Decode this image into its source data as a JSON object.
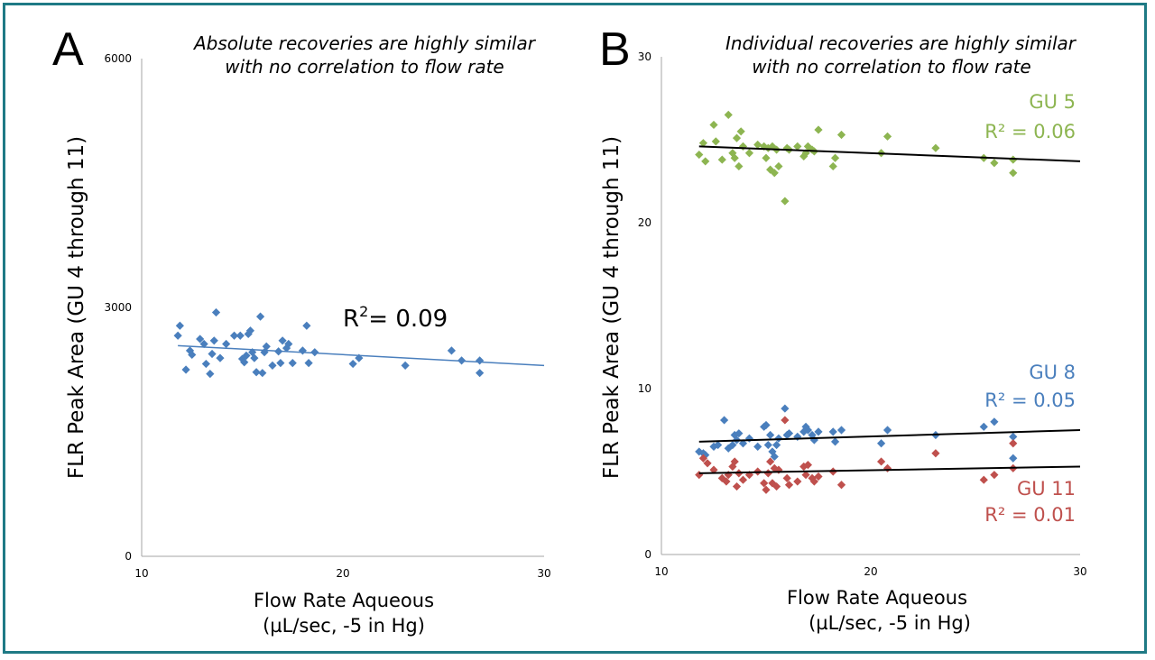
{
  "chart_data": [
    {
      "panel": "A",
      "type": "scatter",
      "title": "Absolute recoveries are highly similar with no correlation to flow rate",
      "title_lines": [
        "Absolute recoveries are highly similar",
        "with no correlation to flow rate"
      ],
      "xlabel_lines": [
        "Flow Rate Aqueous",
        "(µL/sec, -5 in Hg)"
      ],
      "ylabel": "FLR Peak Area (GU 4 through 11)",
      "xlim": [
        10,
        30
      ],
      "ylim": [
        0,
        6000
      ],
      "xticks": [
        "10",
        "20",
        "30"
      ],
      "yticks": [
        "0",
        "3000",
        "6000"
      ],
      "series": [
        {
          "name": "GU 4 through 11",
          "color": "#4a7fbd",
          "r2_label": "R",
          "r2_value": "= 0.09",
          "trend": [
            [
              11.8,
              2540
            ],
            [
              30,
              2300
            ]
          ],
          "points": [
            [
              11.8,
              2660
            ],
            [
              11.9,
              2780
            ],
            [
              12.2,
              2250
            ],
            [
              12.4,
              2480
            ],
            [
              12.5,
              2430
            ],
            [
              12.9,
              2620
            ],
            [
              13.1,
              2560
            ],
            [
              13.2,
              2320
            ],
            [
              13.4,
              2200
            ],
            [
              13.5,
              2440
            ],
            [
              13.6,
              2600
            ],
            [
              13.7,
              2940
            ],
            [
              13.9,
              2390
            ],
            [
              14.2,
              2560
            ],
            [
              14.6,
              2660
            ],
            [
              14.9,
              2660
            ],
            [
              15.0,
              2380
            ],
            [
              15.1,
              2340
            ],
            [
              15.2,
              2420
            ],
            [
              15.3,
              2680
            ],
            [
              15.4,
              2720
            ],
            [
              15.5,
              2460
            ],
            [
              15.6,
              2390
            ],
            [
              15.7,
              2220
            ],
            [
              15.9,
              2890
            ],
            [
              16.0,
              2210
            ],
            [
              16.1,
              2460
            ],
            [
              16.2,
              2530
            ],
            [
              16.5,
              2300
            ],
            [
              16.8,
              2470
            ],
            [
              16.9,
              2330
            ],
            [
              17.0,
              2600
            ],
            [
              17.2,
              2510
            ],
            [
              17.3,
              2560
            ],
            [
              17.5,
              2330
            ],
            [
              18.0,
              2480
            ],
            [
              18.2,
              2780
            ],
            [
              18.3,
              2330
            ],
            [
              18.6,
              2460
            ],
            [
              20.5,
              2320
            ],
            [
              20.8,
              2390
            ],
            [
              23.1,
              2300
            ],
            [
              25.4,
              2480
            ],
            [
              25.9,
              2360
            ],
            [
              26.8,
              2360
            ],
            [
              26.8,
              2210
            ]
          ]
        }
      ]
    },
    {
      "panel": "B",
      "type": "scatter",
      "title": "Individual recoveries are highly similar with no correlation to flow rate",
      "title_lines": [
        "Individual recoveries are highly similar",
        "with no correlation to flow rate"
      ],
      "xlabel_lines": [
        "Flow Rate Aqueous",
        "(µL/sec, -5 in Hg)"
      ],
      "ylabel": "FLR Peak Area (GU 4 through 11)",
      "xlim": [
        10,
        30
      ],
      "ylim": [
        0,
        30
      ],
      "xticks": [
        "10",
        "20",
        "30"
      ],
      "yticks": [
        "0",
        "10",
        "20",
        "30"
      ],
      "series": [
        {
          "name": "GU 5",
          "color": "#8db551",
          "r2_label": "R² = 0.06",
          "trend": [
            [
              11.8,
              24.6
            ],
            [
              30,
              23.7
            ]
          ],
          "points": [
            [
              11.8,
              24.1
            ],
            [
              12.0,
              24.8
            ],
            [
              12.1,
              23.7
            ],
            [
              12.5,
              25.9
            ],
            [
              12.6,
              24.9
            ],
            [
              12.9,
              23.8
            ],
            [
              13.2,
              26.5
            ],
            [
              13.4,
              24.2
            ],
            [
              13.5,
              23.9
            ],
            [
              13.6,
              25.1
            ],
            [
              13.7,
              23.4
            ],
            [
              13.8,
              25.5
            ],
            [
              13.9,
              24.6
            ],
            [
              14.2,
              24.2
            ],
            [
              14.6,
              24.7
            ],
            [
              14.9,
              24.6
            ],
            [
              15.0,
              23.9
            ],
            [
              15.1,
              24.5
            ],
            [
              15.2,
              23.2
            ],
            [
              15.3,
              24.6
            ],
            [
              15.4,
              23.0
            ],
            [
              15.5,
              24.4
            ],
            [
              15.6,
              23.4
            ],
            [
              15.9,
              21.3
            ],
            [
              16.0,
              24.5
            ],
            [
              16.1,
              24.4
            ],
            [
              16.5,
              24.6
            ],
            [
              16.8,
              24.0
            ],
            [
              16.9,
              24.2
            ],
            [
              17.0,
              24.6
            ],
            [
              17.2,
              24.4
            ],
            [
              17.3,
              24.3
            ],
            [
              17.5,
              25.6
            ],
            [
              18.2,
              23.4
            ],
            [
              18.3,
              23.9
            ],
            [
              18.6,
              25.3
            ],
            [
              20.5,
              24.2
            ],
            [
              20.8,
              25.2
            ],
            [
              23.1,
              24.5
            ],
            [
              25.4,
              23.9
            ],
            [
              25.9,
              23.6
            ],
            [
              26.8,
              23.0
            ],
            [
              26.8,
              23.8
            ]
          ]
        },
        {
          "name": "GU 8",
          "color": "#4a7fbd",
          "r2_label": "R² = 0.05",
          "trend": [
            [
              11.8,
              6.8
            ],
            [
              30,
              7.5
            ]
          ],
          "points": [
            [
              11.8,
              6.2
            ],
            [
              12.0,
              6.1
            ],
            [
              12.1,
              6.0
            ],
            [
              12.5,
              6.5
            ],
            [
              12.7,
              6.6
            ],
            [
              13.0,
              8.1
            ],
            [
              13.2,
              6.4
            ],
            [
              13.4,
              6.6
            ],
            [
              13.5,
              7.2
            ],
            [
              13.6,
              6.9
            ],
            [
              13.7,
              7.3
            ],
            [
              13.9,
              6.7
            ],
            [
              14.2,
              7.0
            ],
            [
              14.6,
              6.5
            ],
            [
              14.9,
              7.7
            ],
            [
              15.0,
              7.8
            ],
            [
              15.1,
              6.6
            ],
            [
              15.2,
              7.2
            ],
            [
              15.3,
              6.2
            ],
            [
              15.4,
              5.9
            ],
            [
              15.5,
              6.6
            ],
            [
              15.6,
              7.0
            ],
            [
              15.9,
              8.8
            ],
            [
              16.0,
              7.2
            ],
            [
              16.1,
              7.3
            ],
            [
              16.5,
              7.1
            ],
            [
              16.8,
              7.4
            ],
            [
              16.9,
              7.7
            ],
            [
              17.0,
              7.5
            ],
            [
              17.2,
              7.2
            ],
            [
              17.3,
              6.9
            ],
            [
              17.5,
              7.4
            ],
            [
              18.2,
              7.4
            ],
            [
              18.3,
              6.8
            ],
            [
              18.6,
              7.5
            ],
            [
              20.5,
              6.7
            ],
            [
              20.8,
              7.5
            ],
            [
              23.1,
              7.2
            ],
            [
              25.4,
              7.7
            ],
            [
              25.9,
              8.0
            ],
            [
              26.8,
              7.1
            ],
            [
              26.8,
              5.8
            ]
          ]
        },
        {
          "name": "GU 11",
          "color": "#bf504d",
          "r2_label": "R² = 0.01",
          "trend": [
            [
              11.8,
              4.9
            ],
            [
              30,
              5.3
            ]
          ],
          "points": [
            [
              11.8,
              4.8
            ],
            [
              12.0,
              5.8
            ],
            [
              12.2,
              5.5
            ],
            [
              12.5,
              5.1
            ],
            [
              12.9,
              4.6
            ],
            [
              13.1,
              4.4
            ],
            [
              13.2,
              4.8
            ],
            [
              13.4,
              5.3
            ],
            [
              13.5,
              5.6
            ],
            [
              13.6,
              4.1
            ],
            [
              13.7,
              4.9
            ],
            [
              13.9,
              4.5
            ],
            [
              14.2,
              4.8
            ],
            [
              14.6,
              5.0
            ],
            [
              14.9,
              4.3
            ],
            [
              15.0,
              3.9
            ],
            [
              15.1,
              4.9
            ],
            [
              15.2,
              5.6
            ],
            [
              15.3,
              4.3
            ],
            [
              15.4,
              5.2
            ],
            [
              15.5,
              4.1
            ],
            [
              15.6,
              5.1
            ],
            [
              15.9,
              8.1
            ],
            [
              16.0,
              4.6
            ],
            [
              16.1,
              4.2
            ],
            [
              16.5,
              4.4
            ],
            [
              16.8,
              5.3
            ],
            [
              16.9,
              4.8
            ],
            [
              17.0,
              5.4
            ],
            [
              17.2,
              4.6
            ],
            [
              17.3,
              4.4
            ],
            [
              17.5,
              4.7
            ],
            [
              18.2,
              5.0
            ],
            [
              18.6,
              4.2
            ],
            [
              20.5,
              5.6
            ],
            [
              20.8,
              5.2
            ],
            [
              23.1,
              6.1
            ],
            [
              25.4,
              4.5
            ],
            [
              25.9,
              4.8
            ],
            [
              26.8,
              6.7
            ],
            [
              26.8,
              5.2
            ]
          ]
        }
      ]
    }
  ]
}
